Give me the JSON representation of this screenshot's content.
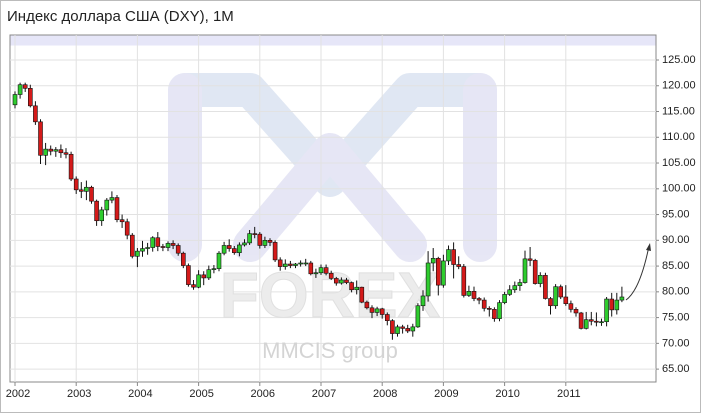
{
  "chart_data": {
    "type": "candlestick",
    "title": "Индекс доллара США (DXY), 1M",
    "watermark": "FOREX",
    "watermark_sub": "MMCIS group",
    "categories": [
      "2002",
      null,
      null,
      null,
      null,
      null,
      null,
      null,
      null,
      null,
      null,
      null,
      "2003",
      null,
      null,
      null,
      null,
      null,
      null,
      null,
      null,
      null,
      null,
      null,
      "2004",
      null,
      null,
      null,
      null,
      null,
      null,
      null,
      null,
      null,
      null,
      null,
      "2005",
      null,
      null,
      null,
      null,
      null,
      null,
      null,
      null,
      null,
      null,
      null,
      "2006",
      null,
      null,
      null,
      null,
      null,
      null,
      null,
      null,
      null,
      null,
      null,
      "2007",
      null,
      null,
      null,
      null,
      null,
      null,
      null,
      null,
      null,
      null,
      null,
      "2008",
      null,
      null,
      null,
      null,
      null,
      null,
      null,
      null,
      null,
      null,
      null,
      "2009",
      null,
      null,
      null,
      null,
      null,
      null,
      null,
      null,
      null,
      null,
      null,
      "2010",
      null,
      null,
      null,
      null,
      null,
      null,
      null,
      null,
      null,
      null,
      null,
      "2011",
      null,
      null,
      null,
      null,
      null,
      null,
      null,
      null,
      null,
      null,
      null
    ],
    "open": [
      116.3,
      118.3,
      120.2,
      119.5,
      116.1,
      113.0,
      106.5,
      107.7,
      107.3,
      107.6,
      107.0,
      106.7,
      101.9,
      99.8,
      99.5,
      100.3,
      97.6,
      93.8,
      95.9,
      97.8,
      98.3,
      94.0,
      93.6,
      91.0,
      86.9,
      87.9,
      88.4,
      88.6,
      90.5,
      88.8,
      88.6,
      89.4,
      89.0,
      87.5,
      85.1,
      81.4,
      80.9,
      83.3,
      82.7,
      84.3,
      84.5,
      87.5,
      89.0,
      88.4,
      87.6,
      89.1,
      89.5,
      91.3,
      91.2,
      89.0,
      90.0,
      89.6,
      86.2,
      84.9,
      85.4,
      85.1,
      85.4,
      85.6,
      85.6,
      83.5,
      83.7,
      84.7,
      83.6,
      82.6,
      81.7,
      82.3,
      81.8,
      80.4,
      80.9,
      78.0,
      76.9,
      76.0,
      76.7,
      75.6,
      74.4,
      71.9,
      73.2,
      72.9,
      72.4,
      73.2,
      77.3,
      79.2,
      85.6,
      86.5,
      81.3,
      86.0,
      88.2,
      85.3,
      84.9,
      79.3,
      80.1,
      78.7,
      78.4,
      76.8,
      76.6,
      74.8,
      77.9,
      79.5,
      80.4,
      81.2,
      81.8,
      86.4,
      86.1,
      81.6,
      83.2,
      78.7,
      77.3,
      81.0,
      79.0,
      77.7,
      76.6,
      75.9,
      72.9,
      74.6,
      74.3,
      74.1,
      74.2,
      78.6,
      76.5,
      78.4
    ],
    "high": [
      118.9,
      120.6,
      120.6,
      120.2,
      117.0,
      113.5,
      108.9,
      108.4,
      108.1,
      108.6,
      107.9,
      107.2,
      102.4,
      101.3,
      101.6,
      100.6,
      97.9,
      96.5,
      98.2,
      99.5,
      98.8,
      95.0,
      94.2,
      91.4,
      88.5,
      89.9,
      89.5,
      90.8,
      91.6,
      89.3,
      89.8,
      90.0,
      89.4,
      87.8,
      85.5,
      82.3,
      84.2,
      84.0,
      85.1,
      85.2,
      87.9,
      89.7,
      90.2,
      88.9,
      89.6,
      90.2,
      92.0,
      92.6,
      91.6,
      90.7,
      90.4,
      90.0,
      86.7,
      86.3,
      86.0,
      85.6,
      86.1,
      86.4,
      86.0,
      84.5,
      85.3,
      85.3,
      84.1,
      82.9,
      82.8,
      82.7,
      82.0,
      82.2,
      81.0,
      78.3,
      77.4,
      77.1,
      76.9,
      76.0,
      74.7,
      73.6,
      73.6,
      73.6,
      73.8,
      77.8,
      80.3,
      87.9,
      88.5,
      86.8,
      87.2,
      89.0,
      89.6,
      86.9,
      85.4,
      81.2,
      81.0,
      79.0,
      78.9,
      77.2,
      77.0,
      78.4,
      80.0,
      81.3,
      82.0,
      82.5,
      88.0,
      88.7,
      86.4,
      83.8,
      83.7,
      79.0,
      81.5,
      81.4,
      81.3,
      78.3,
      77.0,
      76.1,
      76.1,
      76.1,
      76.0,
      74.8,
      79.0,
      79.8,
      79.8,
      81.0
    ],
    "low": [
      115.6,
      117.5,
      118.8,
      115.8,
      112.4,
      104.8,
      104.6,
      106.5,
      106.2,
      106.0,
      105.9,
      101.5,
      99.0,
      98.2,
      97.8,
      97.1,
      92.8,
      92.8,
      94.8,
      97.2,
      93.5,
      92.4,
      90.2,
      86.5,
      84.8,
      86.8,
      87.2,
      87.8,
      87.9,
      87.9,
      87.9,
      88.3,
      87.0,
      84.6,
      81.0,
      80.4,
      80.7,
      81.3,
      82.3,
      83.6,
      84.0,
      87.1,
      87.8,
      87.2,
      86.9,
      88.8,
      89.1,
      90.4,
      88.4,
      88.5,
      88.9,
      85.8,
      84.1,
      84.3,
      84.6,
      84.6,
      84.9,
      85.0,
      83.2,
      82.7,
      83.3,
      83.2,
      82.3,
      81.2,
      81.4,
      81.5,
      79.9,
      79.5,
      77.8,
      76.6,
      74.9,
      75.3,
      74.8,
      73.5,
      70.7,
      71.3,
      71.9,
      72.0,
      71.3,
      73.0,
      76.3,
      78.1,
      84.0,
      79.3,
      80.8,
      85.2,
      82.6,
      84.4,
      78.9,
      79.0,
      78.2,
      77.6,
      76.2,
      75.2,
      74.2,
      74.3,
      77.6,
      79.2,
      79.8,
      80.2,
      81.6,
      85.0,
      81.4,
      80.9,
      78.5,
      75.6,
      76.7,
      78.6,
      77.3,
      76.0,
      75.2,
      72.7,
      72.7,
      73.5,
      73.3,
      73.4,
      73.3,
      75.2,
      75.6,
      78.0
    ],
    "close": [
      118.3,
      120.2,
      119.5,
      116.1,
      113.0,
      106.5,
      107.7,
      107.3,
      107.6,
      107.0,
      106.7,
      101.9,
      99.8,
      99.5,
      100.3,
      97.6,
      93.8,
      95.9,
      97.8,
      98.3,
      94.0,
      93.6,
      91.0,
      86.9,
      87.9,
      88.4,
      88.6,
      90.5,
      88.8,
      88.6,
      89.4,
      89.0,
      87.5,
      85.1,
      81.4,
      80.9,
      83.3,
      82.7,
      84.3,
      84.5,
      87.5,
      89.0,
      88.4,
      87.6,
      89.1,
      89.5,
      91.3,
      91.2,
      89.0,
      90.0,
      89.6,
      86.2,
      84.9,
      85.4,
      85.1,
      85.4,
      85.6,
      85.6,
      83.5,
      83.7,
      84.7,
      83.6,
      82.6,
      81.7,
      82.3,
      81.8,
      80.4,
      80.9,
      78.0,
      76.9,
      76.0,
      76.7,
      75.6,
      74.4,
      71.9,
      73.2,
      72.9,
      72.4,
      73.2,
      77.3,
      79.2,
      85.6,
      86.5,
      81.3,
      86.0,
      88.2,
      85.3,
      84.9,
      79.3,
      80.1,
      78.7,
      78.4,
      76.8,
      76.6,
      74.8,
      77.9,
      79.5,
      80.4,
      81.2,
      81.8,
      86.4,
      86.1,
      81.6,
      83.2,
      78.7,
      77.3,
      81.0,
      79.0,
      77.7,
      76.6,
      75.9,
      72.9,
      74.6,
      74.3,
      74.1,
      74.2,
      78.6,
      76.5,
      78.4,
      79.0
    ],
    "up_color": "#2ecc2e",
    "down_color": "#d41a1a",
    "ylim": [
      62.5,
      129.85
    ],
    "yticks": [
      {
        "value": 65,
        "label": "65.00"
      },
      {
        "value": 70,
        "label": "70.00"
      },
      {
        "value": 75,
        "label": "75.00"
      },
      {
        "value": 80,
        "label": "80.00"
      },
      {
        "value": 85,
        "label": "85.00"
      },
      {
        "value": 90,
        "label": "90.00"
      },
      {
        "value": 95,
        "label": "95.00"
      },
      {
        "value": 100,
        "label": "100.00"
      },
      {
        "value": 105,
        "label": "105.00"
      },
      {
        "value": 110,
        "label": "110.00"
      },
      {
        "value": 115,
        "label": "115.00"
      },
      {
        "value": 120,
        "label": "120.00"
      },
      {
        "value": 125,
        "label": "125.00"
      }
    ],
    "grid": true
  }
}
